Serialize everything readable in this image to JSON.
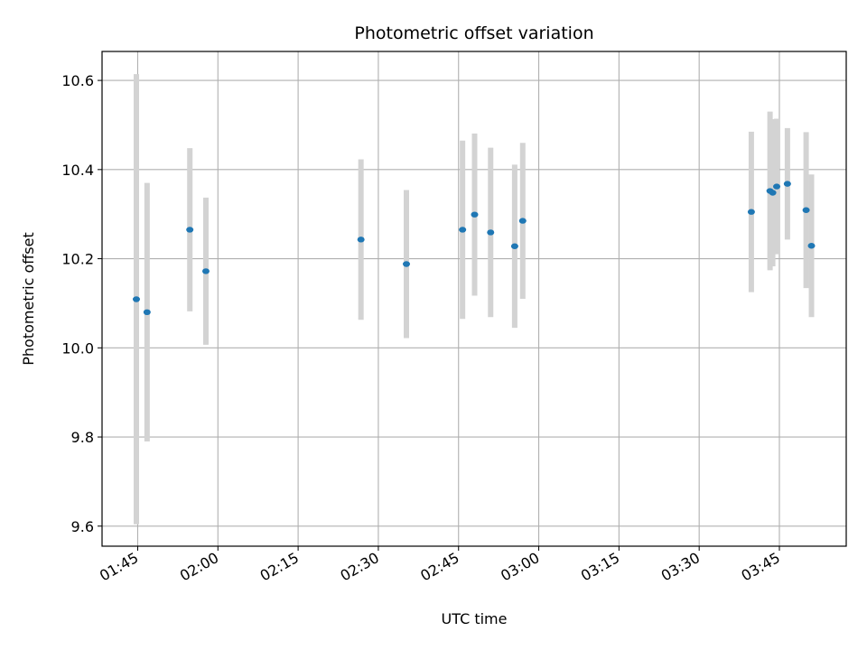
{
  "chart_data": {
    "type": "scatter",
    "title": "Photometric offset variation",
    "xlabel": "UTC time",
    "ylabel": "Photometric offset",
    "grid": true,
    "xlim": [
      "01:38:20",
      "03:57:30"
    ],
    "ylim": [
      9.555,
      10.665
    ],
    "x_ticks": [
      "01:45",
      "02:00",
      "02:15",
      "02:30",
      "02:45",
      "03:00",
      "03:15",
      "03:30",
      "03:45"
    ],
    "y_ticks": [
      "9.6",
      "9.8",
      "10.0",
      "10.2",
      "10.4",
      "10.6"
    ],
    "marker_color": "#1f77b4",
    "errorbar_color": "#d3d3d3",
    "series": [
      {
        "points": [
          {
            "x": "01:44:45",
            "y": 10.109,
            "yerr": 0.505
          },
          {
            "x": "01:46:45",
            "y": 10.08,
            "yerr": 0.29
          },
          {
            "x": "01:54:45",
            "y": 10.265,
            "yerr": 0.183
          },
          {
            "x": "01:57:45",
            "y": 10.172,
            "yerr": 0.165
          },
          {
            "x": "02:26:45",
            "y": 10.243,
            "yerr": 0.18
          },
          {
            "x": "02:35:15",
            "y": 10.188,
            "yerr": 0.166
          },
          {
            "x": "02:45:45",
            "y": 10.265,
            "yerr": 0.2
          },
          {
            "x": "02:48:00",
            "y": 10.299,
            "yerr": 0.182
          },
          {
            "x": "02:51:00",
            "y": 10.259,
            "yerr": 0.19
          },
          {
            "x": "02:55:30",
            "y": 10.228,
            "yerr": 0.183
          },
          {
            "x": "02:57:00",
            "y": 10.285,
            "yerr": 0.175
          },
          {
            "x": "03:39:45",
            "y": 10.305,
            "yerr": 0.18
          },
          {
            "x": "03:43:15",
            "y": 10.352,
            "yerr": 0.178
          },
          {
            "x": "03:43:45",
            "y": 10.348,
            "yerr": 0.165
          },
          {
            "x": "03:44:30",
            "y": 10.362,
            "yerr": 0.152
          },
          {
            "x": "03:46:30",
            "y": 10.368,
            "yerr": 0.125
          },
          {
            "x": "03:50:00",
            "y": 10.309,
            "yerr": 0.175
          },
          {
            "x": "03:51:00",
            "y": 10.229,
            "yerr": 0.16
          }
        ]
      }
    ]
  }
}
